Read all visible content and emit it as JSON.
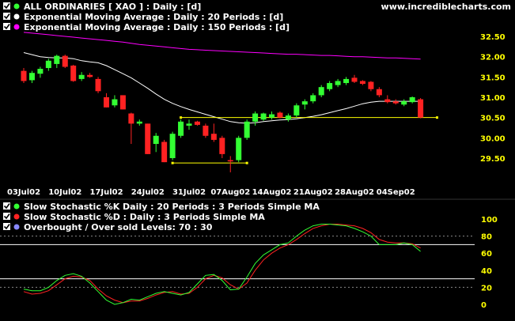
{
  "site": "www.incrediblecharts.com",
  "colors": {
    "background": "#000000",
    "bull": "#33ff33",
    "bear": "#ff2222",
    "ema20": "#ffffff",
    "ema150": "#ff00ff",
    "support": "#ffff00",
    "stoch_k": "#33ff33",
    "stoch_d": "#ff2222",
    "levels": "#ffffff",
    "tick_text": "#ffff00"
  },
  "chart_data": [
    {
      "type": "candlestick",
      "legend": [
        {
          "label": "ALL ORDINARIES  [ XAO ] : Daily : [d]",
          "icon": "checkbox-icon",
          "marker": "bull-bear-dot-icon"
        },
        {
          "label": "Exponential Moving Average : Daily : 20 Periods : [d]",
          "icon": "checkbox-icon",
          "marker": "white-dot-icon"
        },
        {
          "label": "Exponential Moving Average : Daily : 150 Periods : [d]",
          "icon": "checkbox-icon",
          "marker": "magenta-dot-icon"
        }
      ],
      "x_ticks": [
        "03Jul02",
        "10Jul02",
        "17Jul02",
        "24Jul02",
        "31Jul02",
        "07Aug02",
        "14Aug02",
        "21Aug02",
        "28Aug02",
        "04Sep02"
      ],
      "y_ticks": [
        "32.50",
        "32.00",
        "31.50",
        "31.00",
        "30.50",
        "30.00",
        "29.50"
      ],
      "ylim": [
        29.2,
        32.75
      ],
      "candles": [
        {
          "o": 31.65,
          "h": 31.72,
          "l": 31.35,
          "c": 31.4
        },
        {
          "o": 31.42,
          "h": 31.65,
          "l": 31.35,
          "c": 31.6
        },
        {
          "o": 31.58,
          "h": 31.75,
          "l": 31.48,
          "c": 31.7
        },
        {
          "o": 31.72,
          "h": 31.95,
          "l": 31.65,
          "c": 31.9
        },
        {
          "o": 31.82,
          "h": 32.05,
          "l": 31.72,
          "c": 32.02
        },
        {
          "o": 32.02,
          "h": 32.05,
          "l": 31.72,
          "c": 31.75
        },
        {
          "o": 31.78,
          "h": 31.8,
          "l": 31.38,
          "c": 31.4
        },
        {
          "o": 31.45,
          "h": 31.62,
          "l": 31.4,
          "c": 31.55
        },
        {
          "o": 31.55,
          "h": 31.6,
          "l": 31.48,
          "c": 31.5
        },
        {
          "o": 31.45,
          "h": 31.5,
          "l": 31.1,
          "c": 31.15
        },
        {
          "o": 31.0,
          "h": 31.1,
          "l": 30.75,
          "c": 30.75
        },
        {
          "o": 30.8,
          "h": 31.05,
          "l": 30.75,
          "c": 30.95
        },
        {
          "o": 31.05,
          "h": 31.05,
          "l": 30.7,
          "c": 30.7
        },
        {
          "o": 30.6,
          "h": 30.62,
          "l": 29.85,
          "c": 30.35
        },
        {
          "o": 30.35,
          "h": 30.45,
          "l": 30.3,
          "c": 30.4
        },
        {
          "o": 30.35,
          "h": 30.35,
          "l": 29.6,
          "c": 29.6
        },
        {
          "o": 29.85,
          "h": 30.12,
          "l": 29.65,
          "c": 30.05
        },
        {
          "o": 29.9,
          "h": 29.95,
          "l": 29.4,
          "c": 29.4
        },
        {
          "o": 29.5,
          "h": 30.15,
          "l": 29.45,
          "c": 30.1
        },
        {
          "o": 30.05,
          "h": 30.45,
          "l": 30.0,
          "c": 30.4
        },
        {
          "o": 30.3,
          "h": 30.45,
          "l": 30.2,
          "c": 30.35
        },
        {
          "o": 30.4,
          "h": 30.42,
          "l": 30.3,
          "c": 30.32
        },
        {
          "o": 30.3,
          "h": 30.35,
          "l": 30.0,
          "c": 30.05
        },
        {
          "o": 30.1,
          "h": 30.35,
          "l": 29.9,
          "c": 29.95
        },
        {
          "o": 30.0,
          "h": 30.05,
          "l": 29.5,
          "c": 29.6
        },
        {
          "o": 29.45,
          "h": 29.55,
          "l": 29.15,
          "c": 29.42
        },
        {
          "o": 29.45,
          "h": 30.05,
          "l": 29.4,
          "c": 30.0
        },
        {
          "o": 30.0,
          "h": 30.45,
          "l": 29.95,
          "c": 30.4
        },
        {
          "o": 30.4,
          "h": 30.65,
          "l": 30.3,
          "c": 30.6
        },
        {
          "o": 30.45,
          "h": 30.62,
          "l": 30.42,
          "c": 30.6
        },
        {
          "o": 30.5,
          "h": 30.65,
          "l": 30.45,
          "c": 30.58
        },
        {
          "o": 30.62,
          "h": 30.65,
          "l": 30.48,
          "c": 30.5
        },
        {
          "o": 30.45,
          "h": 30.6,
          "l": 30.4,
          "c": 30.55
        },
        {
          "o": 30.55,
          "h": 30.85,
          "l": 30.5,
          "c": 30.8
        },
        {
          "o": 30.82,
          "h": 30.95,
          "l": 30.7,
          "c": 30.9
        },
        {
          "o": 30.9,
          "h": 31.1,
          "l": 30.85,
          "c": 31.05
        },
        {
          "o": 31.05,
          "h": 31.3,
          "l": 31.0,
          "c": 31.25
        },
        {
          "o": 31.2,
          "h": 31.4,
          "l": 31.15,
          "c": 31.35
        },
        {
          "o": 31.3,
          "h": 31.45,
          "l": 31.25,
          "c": 31.4
        },
        {
          "o": 31.35,
          "h": 31.5,
          "l": 31.3,
          "c": 31.45
        },
        {
          "o": 31.48,
          "h": 31.55,
          "l": 31.35,
          "c": 31.38
        },
        {
          "o": 31.4,
          "h": 31.42,
          "l": 31.3,
          "c": 31.33
        },
        {
          "o": 31.38,
          "h": 31.4,
          "l": 31.15,
          "c": 31.2
        },
        {
          "o": 31.2,
          "h": 31.25,
          "l": 31.0,
          "c": 31.05
        },
        {
          "o": 30.95,
          "h": 31.05,
          "l": 30.85,
          "c": 30.88
        },
        {
          "o": 30.9,
          "h": 30.95,
          "l": 30.82,
          "c": 30.85
        },
        {
          "o": 30.82,
          "h": 30.95,
          "l": 30.78,
          "c": 30.9
        },
        {
          "o": 30.88,
          "h": 31.02,
          "l": 30.85,
          "c": 31.0
        },
        {
          "o": 30.95,
          "h": 30.98,
          "l": 30.48,
          "c": 30.5
        }
      ],
      "ema20": [
        32.1,
        32.05,
        32.0,
        31.98,
        31.97,
        31.97,
        31.95,
        31.9,
        31.87,
        31.85,
        31.78,
        31.68,
        31.58,
        31.48,
        31.35,
        31.22,
        31.08,
        30.95,
        30.85,
        30.77,
        30.7,
        30.64,
        30.58,
        30.52,
        30.46,
        30.4,
        30.37,
        30.36,
        30.37,
        30.4,
        30.42,
        30.44,
        30.45,
        30.47,
        30.5,
        30.53,
        30.57,
        30.62,
        30.67,
        30.72,
        30.78,
        30.84,
        30.88,
        30.9,
        30.9,
        30.9,
        30.9,
        30.9,
        30.9
      ],
      "ema150": [
        32.6,
        32.58,
        32.56,
        32.54,
        32.52,
        32.5,
        32.48,
        32.46,
        32.44,
        32.42,
        32.4,
        32.38,
        32.36,
        32.33,
        32.3,
        32.28,
        32.26,
        32.24,
        32.22,
        32.2,
        32.18,
        32.17,
        32.16,
        32.15,
        32.14,
        32.13,
        32.12,
        32.11,
        32.1,
        32.09,
        32.08,
        32.07,
        32.06,
        32.06,
        32.05,
        32.04,
        32.03,
        32.03,
        32.02,
        32.01,
        32.0,
        32.0,
        31.99,
        31.98,
        31.97,
        31.97,
        31.96,
        31.95,
        31.94
      ],
      "annotations": [
        {
          "type": "support-line",
          "value": 30.5,
          "from_index": 19,
          "to_index": 50
        },
        {
          "type": "support-line",
          "value": 29.38,
          "from_index": 18,
          "to_index": 27
        }
      ]
    },
    {
      "type": "line",
      "legend": [
        {
          "label": "Slow Stochastic %K Daily : 20 Periods : 3 Periods Simple MA",
          "icon": "checkbox-icon",
          "marker": "green-dot-icon"
        },
        {
          "label": "Slow Stochastic %D : Daily : 3 Periods Simple MA",
          "icon": "checkbox-icon",
          "marker": "red-dot-icon"
        },
        {
          "label": "Overbought / Over sold Levels: 70 : 30",
          "icon": "checkbox-icon",
          "marker": "blue-dot-icon"
        }
      ],
      "y_ticks": [
        "100",
        "80",
        "60",
        "40",
        "20",
        "0"
      ],
      "ylim": [
        -5,
        115
      ],
      "levels": [
        70,
        30
      ],
      "series": [
        {
          "values": [
            18,
            16,
            16,
            20,
            28,
            34,
            36,
            33,
            25,
            15,
            5,
            0,
            2,
            6,
            5,
            9,
            13,
            15,
            13,
            11,
            14,
            24,
            34,
            35,
            28,
            17,
            18,
            32,
            48,
            58,
            64,
            70,
            72,
            80,
            87,
            92,
            94,
            94,
            93,
            92,
            89,
            85,
            80,
            70,
            70,
            70,
            72,
            70,
            62
          ]
        },
        {
          "values": [
            15,
            12,
            13,
            16,
            23,
            30,
            33,
            32,
            28,
            18,
            10,
            5,
            2,
            4,
            4,
            7,
            11,
            14,
            15,
            12,
            13,
            20,
            30,
            34,
            31,
            23,
            18,
            25,
            40,
            52,
            60,
            66,
            70,
            76,
            83,
            89,
            92,
            94,
            94,
            93,
            92,
            89,
            84,
            76,
            73,
            72,
            72,
            71,
            66
          ]
        }
      ]
    }
  ]
}
